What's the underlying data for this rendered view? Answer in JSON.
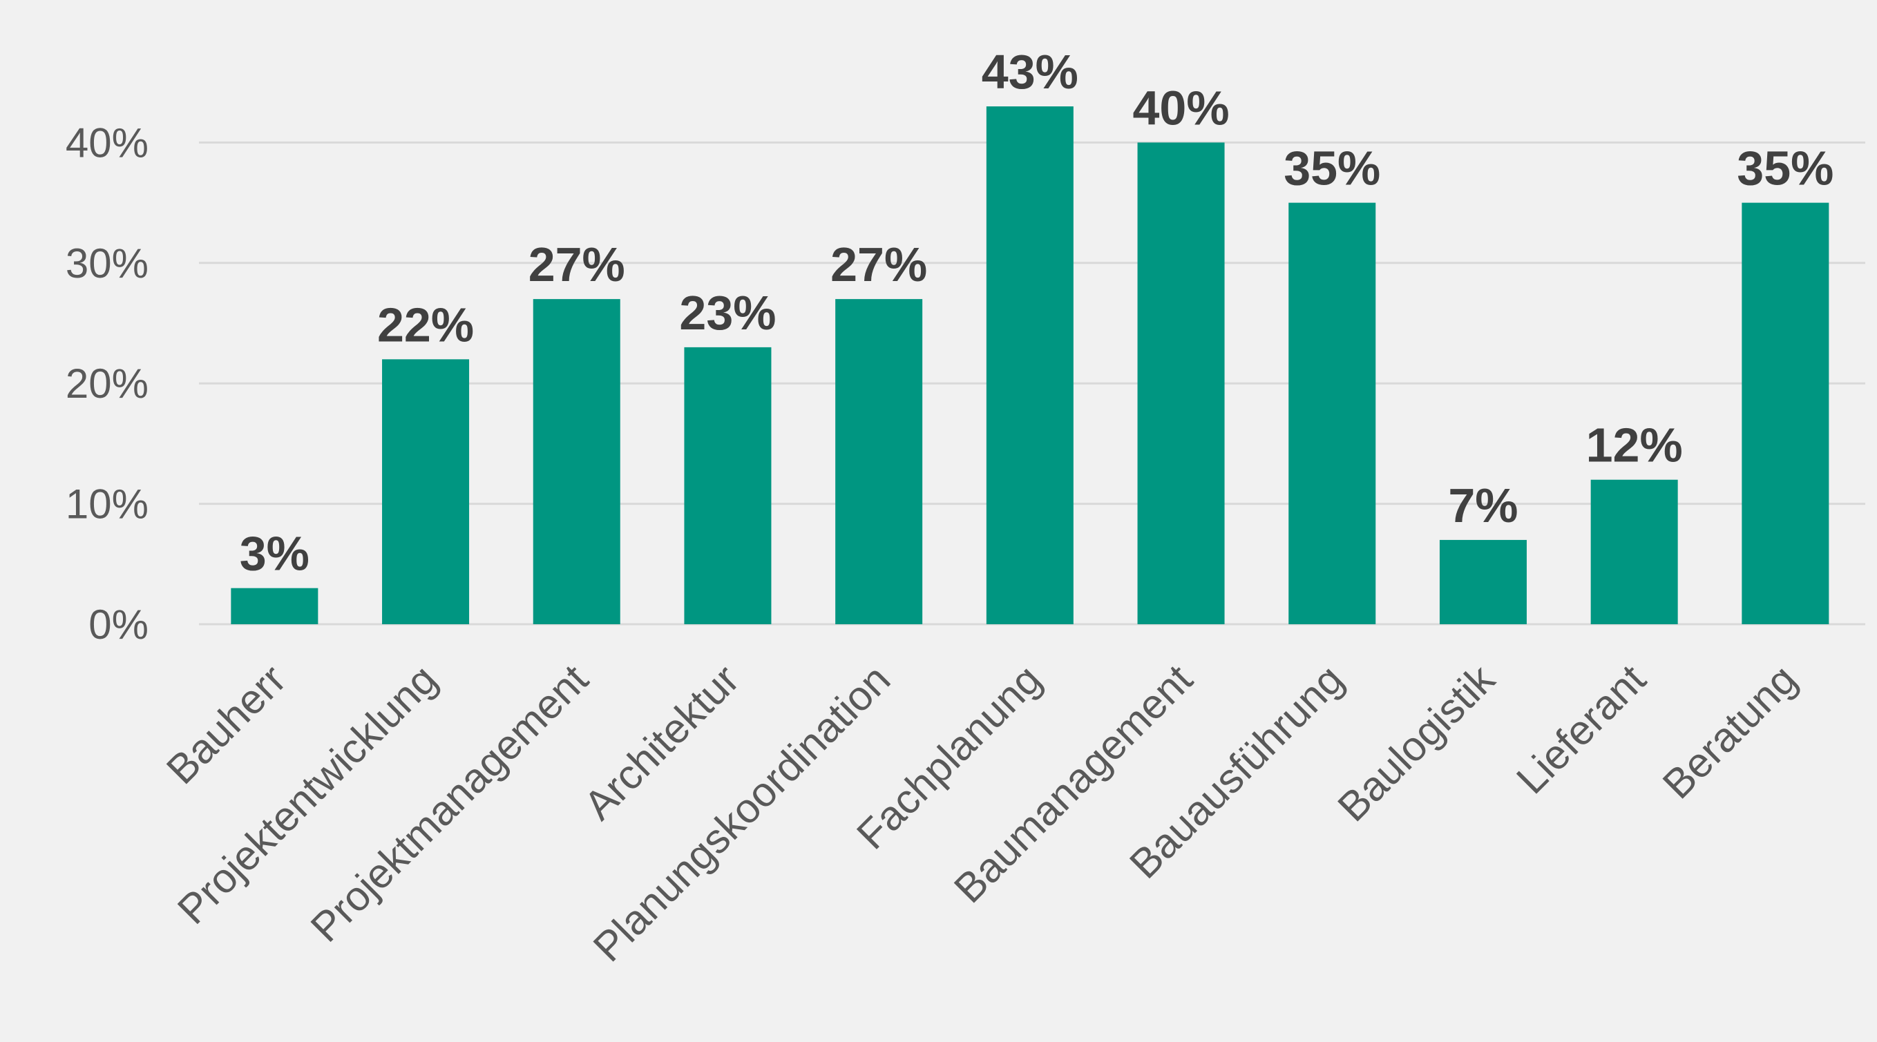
{
  "chart_data": {
    "type": "bar",
    "categories": [
      "Bauherr",
      "Projektentwicklung",
      "Projektmanagement",
      "Architektur",
      "Planungskoordination",
      "Fachplanung",
      "Baumanagement",
      "Bauausführung",
      "Baulogistik",
      "Lieferant",
      "Beratung"
    ],
    "values": [
      3,
      22,
      27,
      23,
      27,
      43,
      40,
      35,
      7,
      12,
      35
    ],
    "value_labels": [
      "3%",
      "22%",
      "27%",
      "23%",
      "27%",
      "43%",
      "40%",
      "35%",
      "7%",
      "12%",
      "35%"
    ],
    "y_ticks": [
      0,
      10,
      20,
      30,
      40
    ],
    "y_tick_labels": [
      "0%",
      "10%",
      "20%",
      "30%",
      "40%"
    ],
    "ylim": [
      0,
      50
    ],
    "grid": true,
    "legend": "none",
    "bar_color": "#009681"
  }
}
